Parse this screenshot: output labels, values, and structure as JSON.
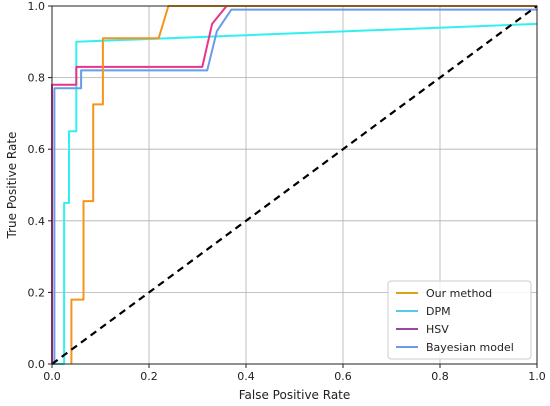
{
  "chart_data": {
    "type": "line",
    "xlabel": "False Positive Rate",
    "ylabel": "True Positive Rate",
    "xlim": [
      0,
      1
    ],
    "ylim": [
      0,
      1
    ],
    "xticks": [
      "0.0",
      "0.2",
      "0.4",
      "0.6",
      "0.8",
      "1.0"
    ],
    "yticks": [
      "0.0",
      "0.2",
      "0.4",
      "0.6",
      "0.8",
      "1.0"
    ],
    "grid": true,
    "legend_position": "bottom-right",
    "series": [
      {
        "name": "DPM",
        "color": "#33f0f0",
        "x": [
          0.0,
          0.025,
          0.025,
          0.035,
          0.035,
          0.05,
          0.05,
          1.0
        ],
        "y": [
          0.0,
          0.0,
          0.45,
          0.45,
          0.65,
          0.65,
          0.9,
          0.95
        ]
      },
      {
        "name": "Bayesian model",
        "color": "#6a9bea",
        "x": [
          0.0,
          0.005,
          0.005,
          0.06,
          0.06,
          0.32,
          0.34,
          0.37,
          1.0
        ],
        "y": [
          0.0,
          0.0,
          0.77,
          0.77,
          0.82,
          0.82,
          0.93,
          0.99,
          0.99
        ]
      },
      {
        "name": "HSV",
        "color": "#e8358c",
        "x": [
          0.0,
          0.0,
          0.05,
          0.05,
          0.31,
          0.33,
          0.36,
          1.0
        ],
        "y": [
          0.0,
          0.78,
          0.78,
          0.83,
          0.83,
          0.95,
          1.0,
          1.0
        ]
      },
      {
        "name": "Our method",
        "color": "#f5941d",
        "x": [
          0.04,
          0.04,
          0.065,
          0.065,
          0.085,
          0.085,
          0.105,
          0.105,
          0.22,
          0.24,
          1.0
        ],
        "y": [
          0.0,
          0.18,
          0.18,
          0.455,
          0.455,
          0.725,
          0.725,
          0.91,
          0.91,
          1.0,
          1.0
        ]
      },
      {
        "name": "chance",
        "color": "#000000",
        "dashed": true,
        "x": [
          0,
          1
        ],
        "y": [
          0,
          1
        ]
      }
    ],
    "legend": [
      {
        "name": "Our method",
        "color": "#d9a21b"
      },
      {
        "name": "DPM",
        "color": "#55c8f0"
      },
      {
        "name": "HSV",
        "color": "#a0449e"
      },
      {
        "name": "Bayesian model",
        "color": "#6a9bea"
      }
    ]
  }
}
